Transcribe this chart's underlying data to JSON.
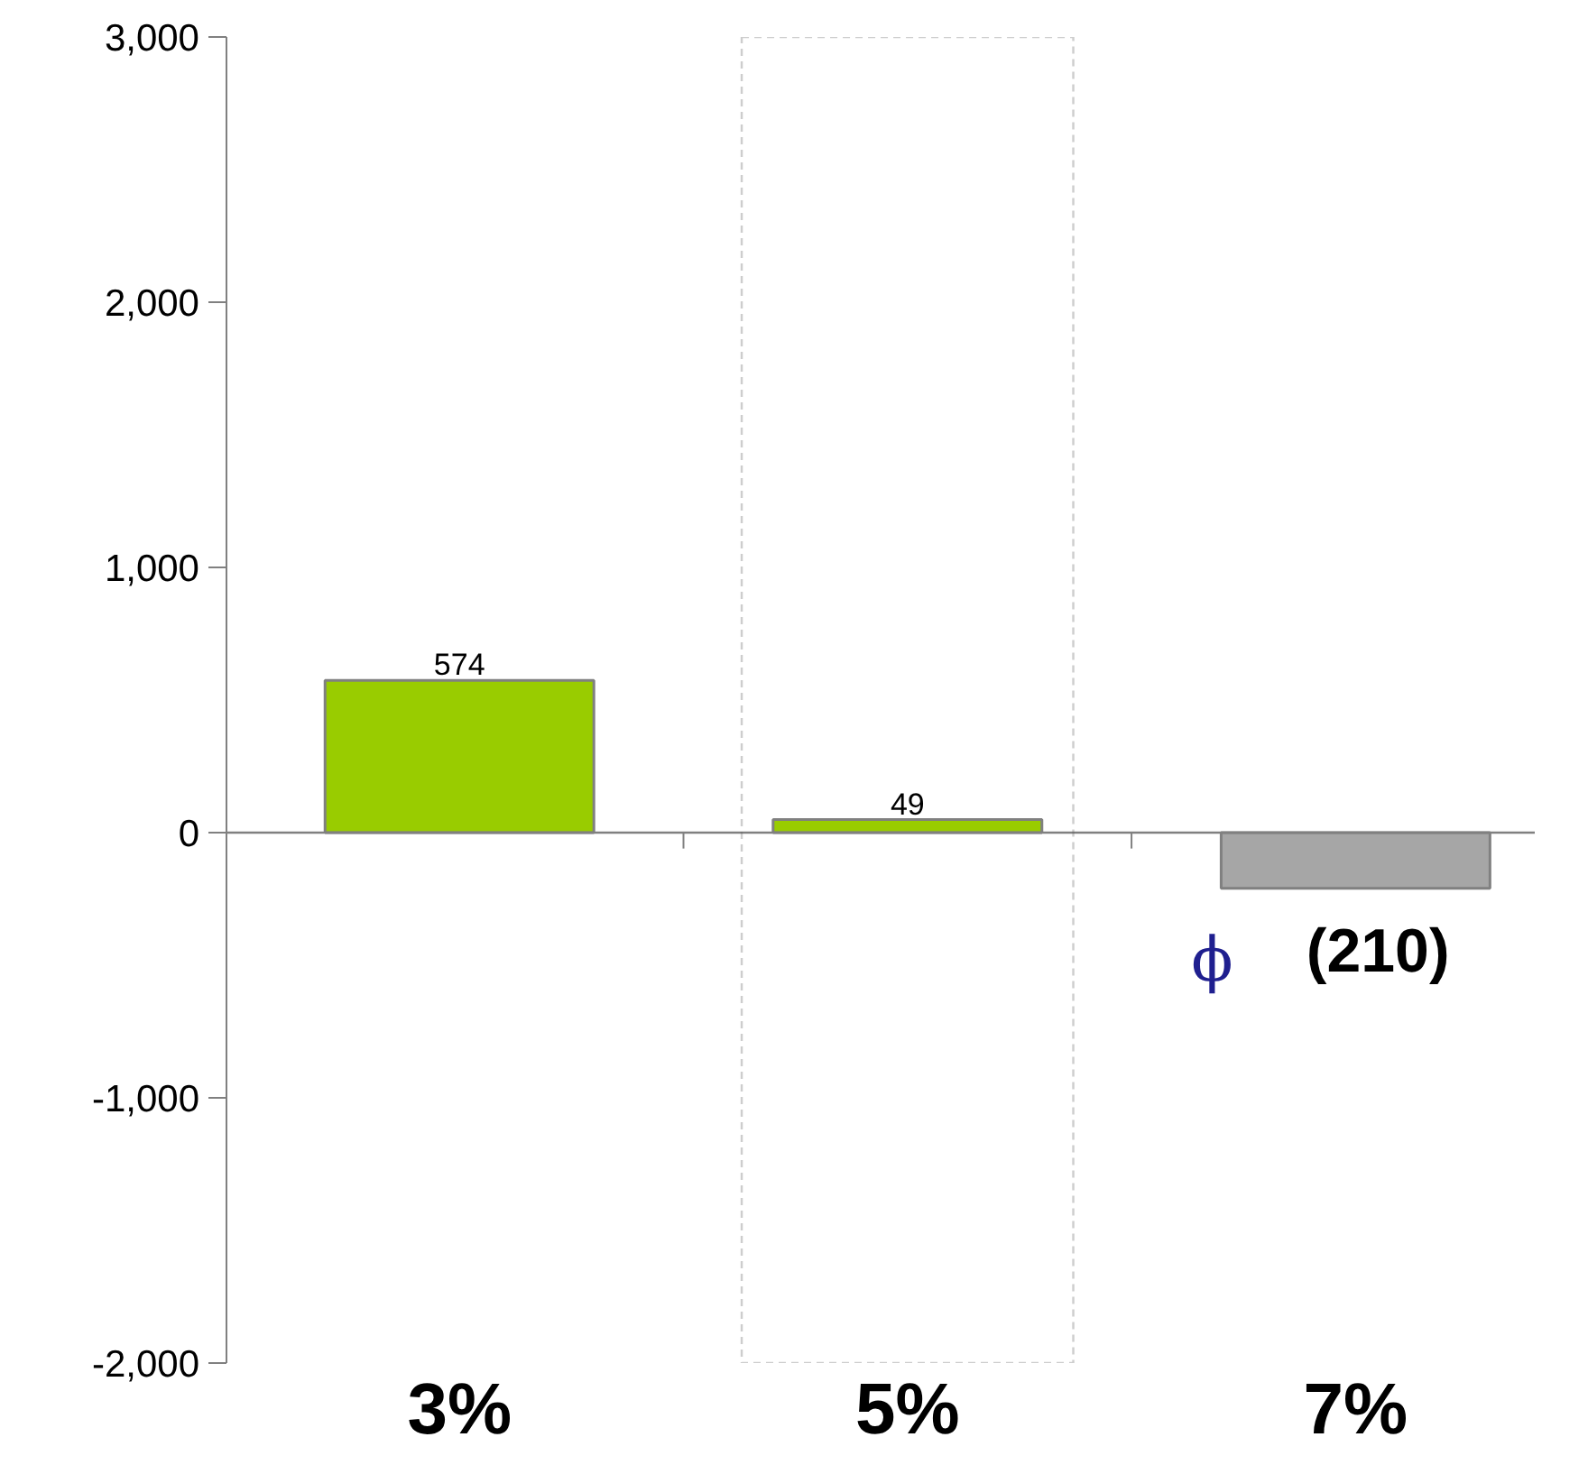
{
  "chart_data": {
    "type": "bar",
    "categories": [
      "3%",
      "5%",
      "7%"
    ],
    "values": [
      574,
      49,
      -210
    ],
    "colors": [
      "#99cc00",
      "#99cc00",
      "#a6a6a6"
    ],
    "value_labels": [
      "574",
      "49",
      "(210)"
    ],
    "ylim": [
      -2000,
      3000
    ],
    "yticks": [
      {
        "value": -2000,
        "label": "-2,000"
      },
      {
        "value": -1000,
        "label": "-1,000"
      },
      0,
      {
        "value": 1000,
        "label": "1,000"
      },
      {
        "value": 2000,
        "label": "2,000"
      },
      {
        "value": 3000,
        "label": "3,000"
      }
    ],
    "annotations": [
      "ϕ"
    ]
  }
}
